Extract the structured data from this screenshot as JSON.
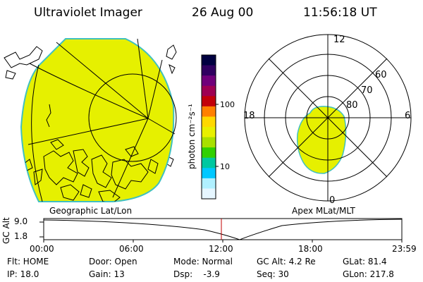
{
  "header": {
    "title": "Ultraviolet Imager",
    "date": "26 Aug 00",
    "time": "11:56:18 UT"
  },
  "colorbar": {
    "unit": "photon cm⁻²s⁻¹",
    "ticks": [
      "100",
      "10"
    ],
    "colors": [
      "#000040",
      "#300060",
      "#70007a",
      "#9e0052",
      "#c2000a",
      "#ff8000",
      "#ffd800",
      "#e8f000",
      "#a8e000",
      "#30d000",
      "#00c8a0",
      "#00c8ff",
      "#b0f0ff",
      "#e6f6ff"
    ]
  },
  "geo_panel": {
    "caption": "Geographic Lat/Lon",
    "fill_color": "#e6f000"
  },
  "polar_panel": {
    "caption": "Apex MLat/MLT",
    "mlt_labels": [
      "12",
      "18",
      "6",
      "0"
    ],
    "lat_labels": [
      "60",
      "70",
      "80"
    ]
  },
  "altitude_plot": {
    "ylabel": "GC Alt",
    "yticks": [
      "9.0",
      "1.8"
    ],
    "xticks": [
      "00:00",
      "06:00",
      "12:00",
      "18:00",
      "23:59"
    ]
  },
  "info": {
    "row1": [
      "Flt: HOME",
      "Door: Open",
      "Mode: Normal",
      "GC Alt: 4.2 Re",
      "GLat: 81.4"
    ],
    "row2": [
      "IP: 18.0",
      "Gain: 13",
      "Dsp:    -3.9",
      "Seq: 30",
      "GLon: 217.8"
    ]
  }
}
